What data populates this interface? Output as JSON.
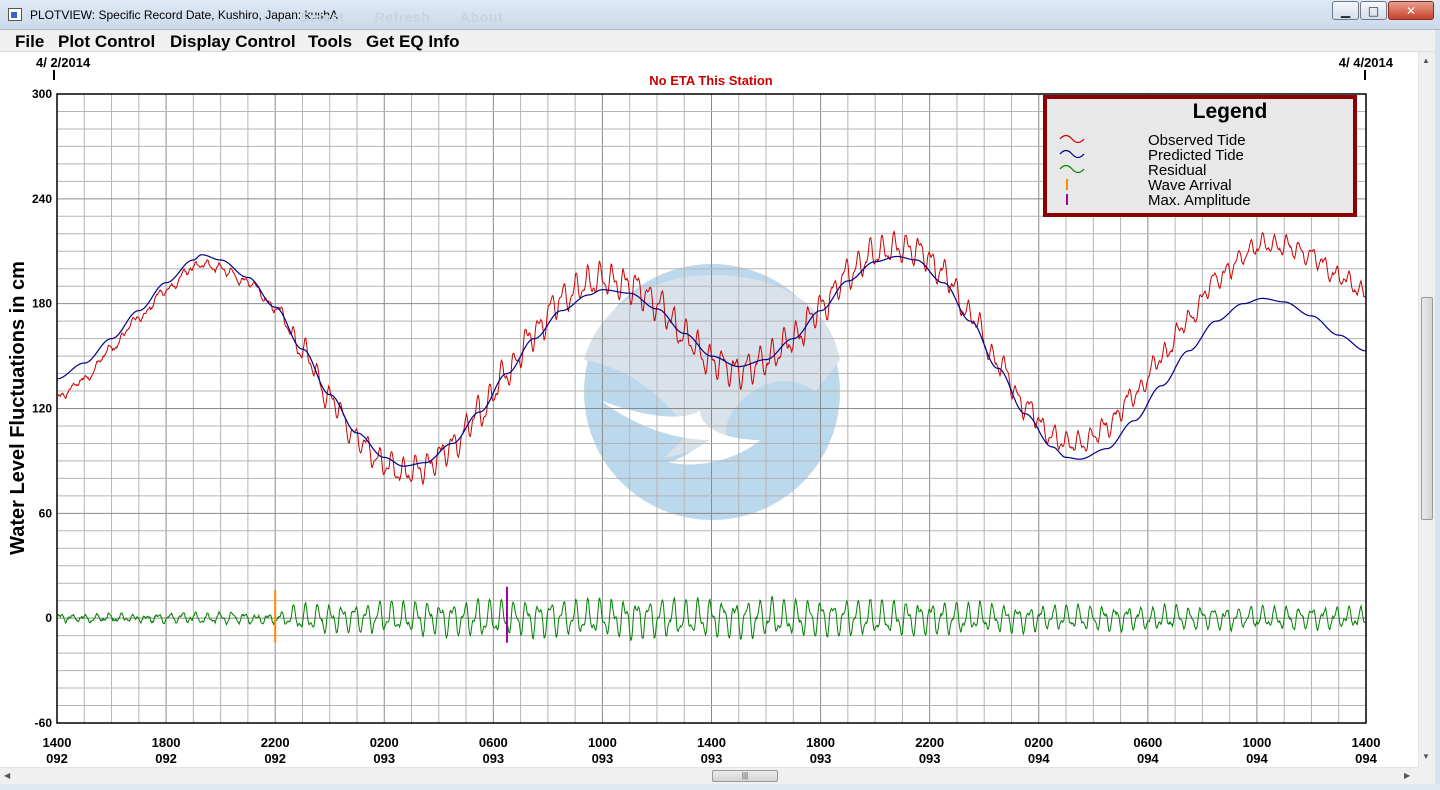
{
  "window": {
    "title": "PLOTVIEW: Specific Record Date, Kushiro, Japan: kushA",
    "ghost_menu": [
      "Select",
      "Refresh",
      "About"
    ],
    "minimize_glyph": "▁",
    "maximize_glyph": "□",
    "close_glyph": "✕"
  },
  "menubar": {
    "items": [
      "File",
      "Plot Control",
      "Display Control",
      "Tools",
      "Get EQ Info"
    ]
  },
  "header": {
    "start_date": "4/ 2/2014",
    "end_date": "4/ 4/2014",
    "eta_text": "No ETA This Station"
  },
  "legend": {
    "title": "Legend",
    "items": [
      {
        "label": "Observed Tide",
        "color": "#cc0000",
        "icon": "wave-icon"
      },
      {
        "label": "Predicted Tide",
        "color": "#00008b",
        "icon": "wave-icon"
      },
      {
        "label": "Residual",
        "color": "#008000",
        "icon": "wave-icon"
      },
      {
        "label": "Wave Arrival",
        "color": "#ff8c00",
        "icon": "tick-icon"
      },
      {
        "label": "Max. Amplitude",
        "color": "#a000a0",
        "icon": "tick-icon"
      }
    ]
  },
  "chart_data": {
    "type": "line",
    "ylabel": "Water Level Fluctuations in cm",
    "ylim": [
      -60,
      300
    ],
    "yticks": [
      300,
      240,
      180,
      120,
      60,
      0,
      -60
    ],
    "xlim_hours": [
      0,
      48
    ],
    "xticks": [
      {
        "hour": 0,
        "time": "1400",
        "day": "092"
      },
      {
        "hour": 4,
        "time": "1800",
        "day": "092"
      },
      {
        "hour": 8,
        "time": "2200",
        "day": "092"
      },
      {
        "hour": 12,
        "time": "0200",
        "day": "093"
      },
      {
        "hour": 16,
        "time": "0600",
        "day": "093"
      },
      {
        "hour": 20,
        "time": "1000",
        "day": "093"
      },
      {
        "hour": 24,
        "time": "1400",
        "day": "093"
      },
      {
        "hour": 28,
        "time": "1800",
        "day": "093"
      },
      {
        "hour": 32,
        "time": "2200",
        "day": "093"
      },
      {
        "hour": 36,
        "time": "0200",
        "day": "094"
      },
      {
        "hour": 40,
        "time": "0600",
        "day": "094"
      },
      {
        "hour": 44,
        "time": "1000",
        "day": "094"
      },
      {
        "hour": 48,
        "time": "1400",
        "day": "094"
      }
    ],
    "grid": true,
    "colors": {
      "observed": "#cc0000",
      "predicted": "#00008b",
      "residual": "#008000",
      "wave_arrival": "#ff8c00",
      "max_amplitude": "#a000a0",
      "title": "#cc0000",
      "legend_border": "#8b0000"
    },
    "predicted": [
      {
        "x": 0,
        "y": 137
      },
      {
        "x": 1,
        "y": 146
      },
      {
        "x": 2,
        "y": 160
      },
      {
        "x": 3,
        "y": 176
      },
      {
        "x": 4,
        "y": 192
      },
      {
        "x": 5,
        "y": 205
      },
      {
        "x": 5.3,
        "y": 208
      },
      {
        "x": 6,
        "y": 205
      },
      {
        "x": 7,
        "y": 195
      },
      {
        "x": 8,
        "y": 178
      },
      {
        "x": 9,
        "y": 154
      },
      {
        "x": 10,
        "y": 128
      },
      {
        "x": 11,
        "y": 106
      },
      {
        "x": 12,
        "y": 92
      },
      {
        "x": 12.7,
        "y": 87
      },
      {
        "x": 13.5,
        "y": 89
      },
      {
        "x": 14.5,
        "y": 100
      },
      {
        "x": 15.5,
        "y": 118
      },
      {
        "x": 16.5,
        "y": 140
      },
      {
        "x": 17.5,
        "y": 160
      },
      {
        "x": 18.5,
        "y": 176
      },
      {
        "x": 19.5,
        "y": 185
      },
      {
        "x": 20,
        "y": 188
      },
      {
        "x": 21,
        "y": 186
      },
      {
        "x": 22,
        "y": 177
      },
      {
        "x": 23,
        "y": 163
      },
      {
        "x": 24,
        "y": 150
      },
      {
        "x": 25,
        "y": 144
      },
      {
        "x": 26,
        "y": 148
      },
      {
        "x": 27,
        "y": 160
      },
      {
        "x": 28,
        "y": 176
      },
      {
        "x": 29,
        "y": 193
      },
      {
        "x": 30,
        "y": 204
      },
      {
        "x": 30.8,
        "y": 207
      },
      {
        "x": 31.5,
        "y": 205
      },
      {
        "x": 32.5,
        "y": 192
      },
      {
        "x": 33.5,
        "y": 170
      },
      {
        "x": 34.5,
        "y": 143
      },
      {
        "x": 35.5,
        "y": 117
      },
      {
        "x": 36.5,
        "y": 98
      },
      {
        "x": 37,
        "y": 92
      },
      {
        "x": 37.5,
        "y": 91
      },
      {
        "x": 38.5,
        "y": 97
      },
      {
        "x": 39.5,
        "y": 113
      },
      {
        "x": 40.5,
        "y": 133
      },
      {
        "x": 41.5,
        "y": 153
      },
      {
        "x": 42.5,
        "y": 170
      },
      {
        "x": 43.5,
        "y": 180
      },
      {
        "x": 44.2,
        "y": 183
      },
      {
        "x": 45,
        "y": 181
      },
      {
        "x": 46,
        "y": 173
      },
      {
        "x": 47,
        "y": 162
      },
      {
        "x": 48,
        "y": 153
      }
    ],
    "observed_offset": [
      {
        "x": 0,
        "y": -11
      },
      {
        "x": 3,
        "y": -4
      },
      {
        "x": 6,
        "y": -5
      },
      {
        "x": 8,
        "y": 0
      },
      {
        "x": 12,
        "y": -4
      },
      {
        "x": 16,
        "y": 0
      },
      {
        "x": 19,
        "y": 7
      },
      {
        "x": 21,
        "y": 5
      },
      {
        "x": 24,
        "y": -3
      },
      {
        "x": 27,
        "y": 0
      },
      {
        "x": 30,
        "y": 5
      },
      {
        "x": 32,
        "y": 6
      },
      {
        "x": 34,
        "y": 3
      },
      {
        "x": 36,
        "y": 5
      },
      {
        "x": 37.5,
        "y": 9
      },
      {
        "x": 39,
        "y": 14
      },
      {
        "x": 41,
        "y": 17
      },
      {
        "x": 43,
        "y": 25
      },
      {
        "x": 44.2,
        "y": 31
      },
      {
        "x": 46,
        "y": 34
      },
      {
        "x": 48,
        "y": 33
      }
    ],
    "residual_envelope": [
      {
        "x": 0,
        "y": 2
      },
      {
        "x": 8,
        "y": 3
      },
      {
        "x": 9,
        "y": 8
      },
      {
        "x": 16,
        "y": 10
      },
      {
        "x": 22,
        "y": 11
      },
      {
        "x": 30,
        "y": 10
      },
      {
        "x": 37,
        "y": 7
      },
      {
        "x": 44,
        "y": 6
      },
      {
        "x": 48,
        "y": 6
      }
    ],
    "residual_period_hours": 0.45,
    "wave_arrival_hour": 8,
    "max_amplitude_hour": 16.5
  }
}
